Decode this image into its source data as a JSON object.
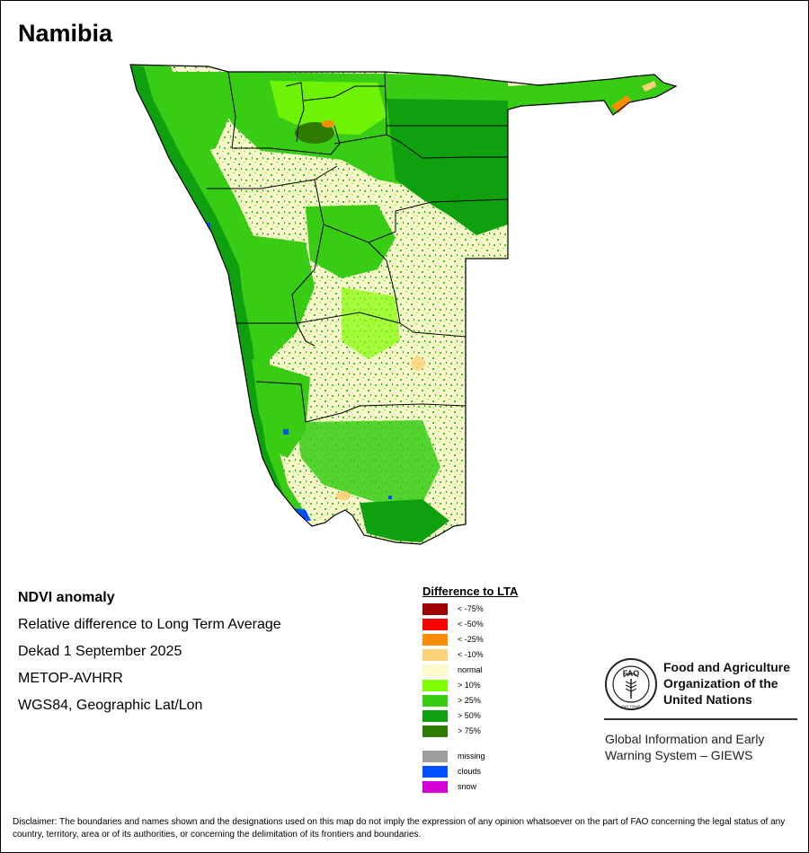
{
  "map": {
    "title": "Namibia",
    "land_color": "#f7f6cc",
    "border_color": "#000000"
  },
  "info": {
    "product": "NDVI anomaly",
    "description": "Relative difference to Long Term Average",
    "period": "Dekad 1 September 2025",
    "sensor": "METOP-AVHRR",
    "projection": "WGS84, Geographic Lat/Lon"
  },
  "legend": {
    "title": "Difference to LTA",
    "items": [
      {
        "label": "< -75%",
        "color": "#9c0000"
      },
      {
        "label": "< -50%",
        "color": "#ff0000"
      },
      {
        "label": "< -25%",
        "color": "#ff8c00"
      },
      {
        "label": "< -10%",
        "color": "#ffd27a"
      },
      {
        "label": "normal",
        "color": "#fcfacb"
      },
      {
        "label": "> 10%",
        "color": "#80ff00"
      },
      {
        "label": "> 25%",
        "color": "#38cc14"
      },
      {
        "label": "> 50%",
        "color": "#0ea00e"
      },
      {
        "label": "> 75%",
        "color": "#2f7a00"
      }
    ],
    "extra_items": [
      {
        "label": "missing",
        "color": "#9e9e9e"
      },
      {
        "label": "clouds",
        "color": "#0050ff"
      },
      {
        "label": "snow",
        "color": "#d200d2"
      }
    ]
  },
  "org": {
    "logo_text": "FAO",
    "logo_motto": "FIAT PANIS",
    "name_line1": "Food and Agriculture",
    "name_line2": "Organization of the",
    "name_line3": "United Nations",
    "system_line1": "Global Information and Early",
    "system_line2": "Warning System – GIEWS"
  },
  "disclaimer": "Disclaimer: The boundaries and names shown and the designations used on this map do not imply the expression of any opinion whatsoever on the part of FAO concerning the legal status of any country, territory, area or of its authorities, or concerning the delimitation of its frontiers and boundaries."
}
